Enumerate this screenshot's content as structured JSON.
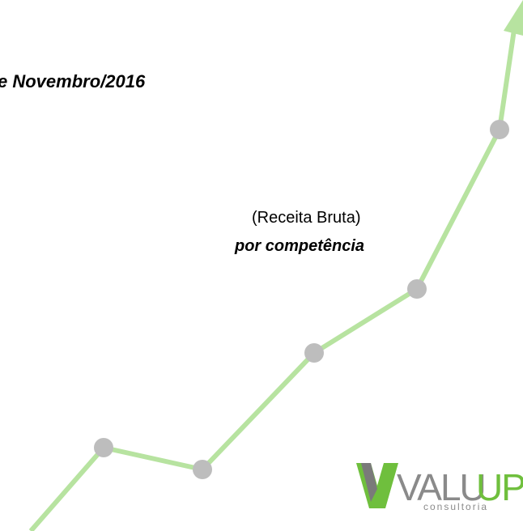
{
  "heading": "e Novembro/2016",
  "subtitle": {
    "line1": "(Receita Bruta)",
    "line2": "por competência"
  },
  "logo": {
    "text": "VALU",
    "accent": "UP",
    "tagline": "consultoria"
  }
}
